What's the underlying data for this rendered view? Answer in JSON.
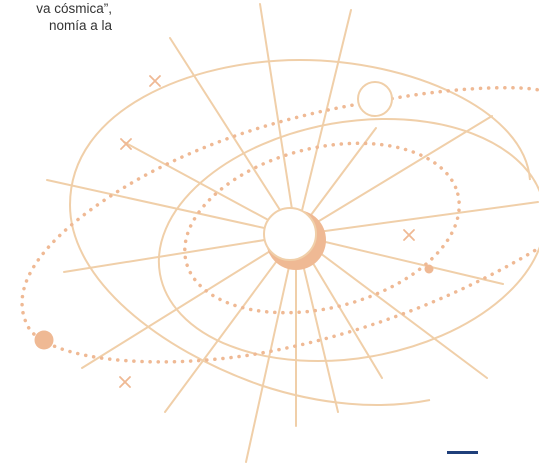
{
  "excerpt": {
    "line1": "va cósmica”,",
    "line2": "nomía  a  la"
  },
  "colors": {
    "line": "#f0cfa9",
    "fill": "#efb994",
    "circle_stroke": "#f0cfa9",
    "accent_bar": "#1f3f7a",
    "text": "#333333"
  }
}
